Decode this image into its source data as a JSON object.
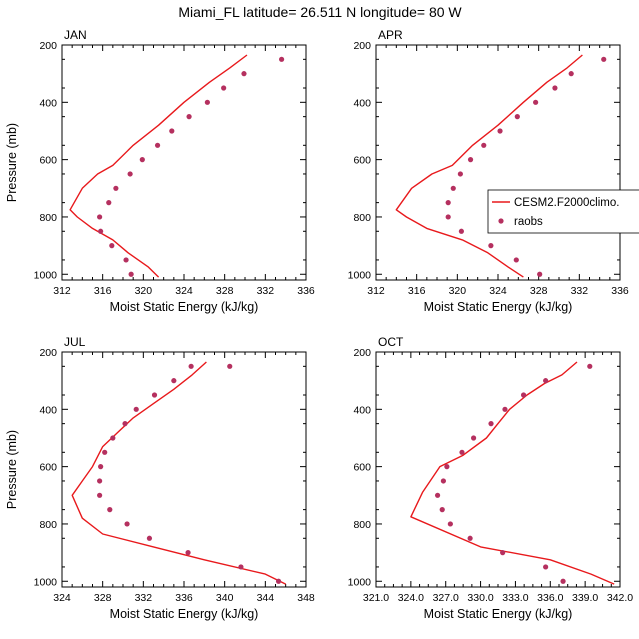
{
  "figure": {
    "title": "Miami_FL  latitude= 26.511 N longitude= 80 W"
  },
  "colors": {
    "model_line": "#e8191c",
    "obs_marker": "#b5305f",
    "axis": "#000000"
  },
  "legend": {
    "items": [
      {
        "label": "CESM2.F2000climo.",
        "kind": "line"
      },
      {
        "label": "raobs",
        "kind": "marker"
      }
    ]
  },
  "chart_data": [
    {
      "type": "line+scatter",
      "panel": "top-left",
      "title": "JAN",
      "xlabel": "Moist Static Energy (kJ/kg)",
      "ylabel": "Pressure (mb)",
      "xlim": [
        312,
        336
      ],
      "ylim": [
        200,
        1020
      ],
      "y_inverted": true,
      "xticks": [
        312,
        316,
        320,
        324,
        328,
        332,
        336
      ],
      "xtick_labels": [
        "312",
        "316",
        "320",
        "324",
        "328",
        "332",
        "336"
      ],
      "yticks": [
        200,
        400,
        600,
        800,
        1000
      ],
      "ytick_labels": [
        "200",
        "400",
        "600",
        "800",
        "1000"
      ],
      "show_ylabel": true,
      "show_legend": false,
      "model": {
        "name": "CESM2.F2000climo.",
        "x": [
          321.5,
          320.5,
          318.5,
          317.0,
          315.0,
          313.5,
          312.8,
          314.0,
          315.5,
          317.0,
          319.0,
          321.5,
          324.0,
          326.5,
          328.5,
          330.2
        ],
        "p": [
          1010,
          975,
          925,
          880,
          840,
          800,
          775,
          700,
          650,
          620,
          550,
          480,
          400,
          330,
          280,
          235
        ]
      },
      "obs": {
        "name": "raobs",
        "x": [
          318.8,
          318.3,
          316.9,
          315.8,
          315.7,
          316.6,
          317.3,
          318.7,
          319.9,
          321.4,
          322.8,
          324.5,
          326.3,
          327.9,
          329.9,
          333.6
        ],
        "p": [
          1000,
          950,
          900,
          850,
          800,
          750,
          700,
          650,
          600,
          550,
          500,
          450,
          400,
          350,
          300,
          250
        ]
      }
    },
    {
      "type": "line+scatter",
      "panel": "top-right",
      "title": "APR",
      "xlabel": "Moist Static Energy (kJ/kg)",
      "ylabel": "",
      "xlim": [
        312,
        336
      ],
      "ylim": [
        200,
        1020
      ],
      "y_inverted": true,
      "xticks": [
        312,
        316,
        320,
        324,
        328,
        332,
        336
      ],
      "xtick_labels": [
        "312",
        "316",
        "320",
        "324",
        "328",
        "332",
        "336"
      ],
      "yticks": [
        200,
        400,
        600,
        800,
        1000
      ],
      "ytick_labels": [
        "200",
        "400",
        "600",
        "800",
        "1000"
      ],
      "show_ylabel": false,
      "show_legend": true,
      "model": {
        "name": "CESM2.F2000climo.",
        "x": [
          326.5,
          325.0,
          323.0,
          320.5,
          317.0,
          315.0,
          314.0,
          315.5,
          317.5,
          319.5,
          321.5,
          324.0,
          326.5,
          328.8,
          330.8,
          332.3
        ],
        "p": [
          1010,
          975,
          925,
          880,
          840,
          800,
          775,
          700,
          650,
          620,
          550,
          480,
          400,
          330,
          280,
          235
        ]
      },
      "obs": {
        "name": "raobs",
        "x": [
          328.1,
          325.8,
          323.3,
          320.4,
          319.1,
          319.1,
          319.6,
          320.3,
          321.3,
          322.6,
          324.2,
          325.9,
          327.7,
          329.6,
          331.2,
          334.4
        ],
        "p": [
          1000,
          950,
          900,
          850,
          800,
          750,
          700,
          650,
          600,
          550,
          500,
          450,
          400,
          350,
          300,
          250
        ]
      }
    },
    {
      "type": "line+scatter",
      "panel": "bottom-left",
      "title": "JUL",
      "xlabel": "Moist Static Energy (kJ/kg)",
      "ylabel": "Pressure (mb)",
      "xlim": [
        324,
        348
      ],
      "ylim": [
        200,
        1020
      ],
      "y_inverted": true,
      "xticks": [
        324,
        328,
        332,
        336,
        340,
        344,
        348
      ],
      "xtick_labels": [
        "324",
        "328",
        "332",
        "336",
        "340",
        "344",
        "348"
      ],
      "yticks": [
        200,
        400,
        600,
        800,
        1000
      ],
      "ytick_labels": [
        "200",
        "400",
        "600",
        "800",
        "1000"
      ],
      "show_ylabel": true,
      "show_legend": false,
      "model": {
        "name": "CESM2.F2000climo.",
        "x": [
          346.0,
          344.0,
          338.0,
          333.0,
          328.0,
          326.0,
          325.0,
          326.0,
          327.0,
          328.0,
          329.5,
          331.0,
          333.0,
          335.0,
          336.8,
          338.2
        ],
        "p": [
          1010,
          975,
          925,
          880,
          835,
          780,
          700,
          650,
          600,
          530,
          480,
          430,
          380,
          330,
          280,
          235
        ]
      },
      "obs": {
        "name": "raobs",
        "x": [
          345.3,
          341.6,
          336.4,
          332.6,
          330.4,
          328.7,
          327.7,
          327.7,
          327.8,
          328.2,
          329.0,
          330.2,
          331.3,
          333.1,
          335.0,
          336.7,
          340.5
        ],
        "p": [
          1000,
          950,
          900,
          850,
          800,
          750,
          700,
          650,
          600,
          550,
          500,
          450,
          400,
          350,
          300,
          250,
          250
        ]
      }
    },
    {
      "type": "line+scatter",
      "panel": "bottom-right",
      "title": "OCT",
      "xlabel": "Moist Static Energy (kJ/kg)",
      "ylabel": "",
      "xlim": [
        321.0,
        342.0
      ],
      "ylim": [
        200,
        1020
      ],
      "y_inverted": true,
      "xticks": [
        321.0,
        324.0,
        327.0,
        330.0,
        333.0,
        336.0,
        339.0,
        342.0
      ],
      "xtick_labels": [
        "321.0",
        "324.0",
        "327.0",
        "330.0",
        "333.0",
        "336.0",
        "339.0",
        "342.0"
      ],
      "yticks": [
        200,
        400,
        600,
        800,
        1000
      ],
      "ytick_labels": [
        "200",
        "400",
        "600",
        "800",
        "1000"
      ],
      "show_ylabel": false,
      "show_legend": false,
      "model": {
        "name": "CESM2.F2000climo.",
        "x": [
          341.5,
          339.5,
          336.0,
          330.0,
          324.0,
          325.0,
          326.5,
          328.5,
          330.5,
          331.5,
          332.5,
          334.0,
          335.5,
          337.0,
          338.3
        ],
        "p": [
          1010,
          975,
          925,
          880,
          775,
          690,
          600,
          560,
          500,
          450,
          400,
          350,
          310,
          280,
          235
        ]
      },
      "obs": {
        "name": "raobs",
        "x": [
          337.1,
          335.6,
          331.9,
          329.1,
          327.4,
          326.7,
          326.3,
          326.8,
          327.1,
          328.4,
          329.4,
          330.9,
          332.1,
          333.7,
          335.6,
          339.4
        ],
        "p": [
          1000,
          950,
          900,
          850,
          800,
          750,
          700,
          650,
          600,
          550,
          500,
          450,
          400,
          350,
          300,
          250
        ]
      }
    }
  ]
}
